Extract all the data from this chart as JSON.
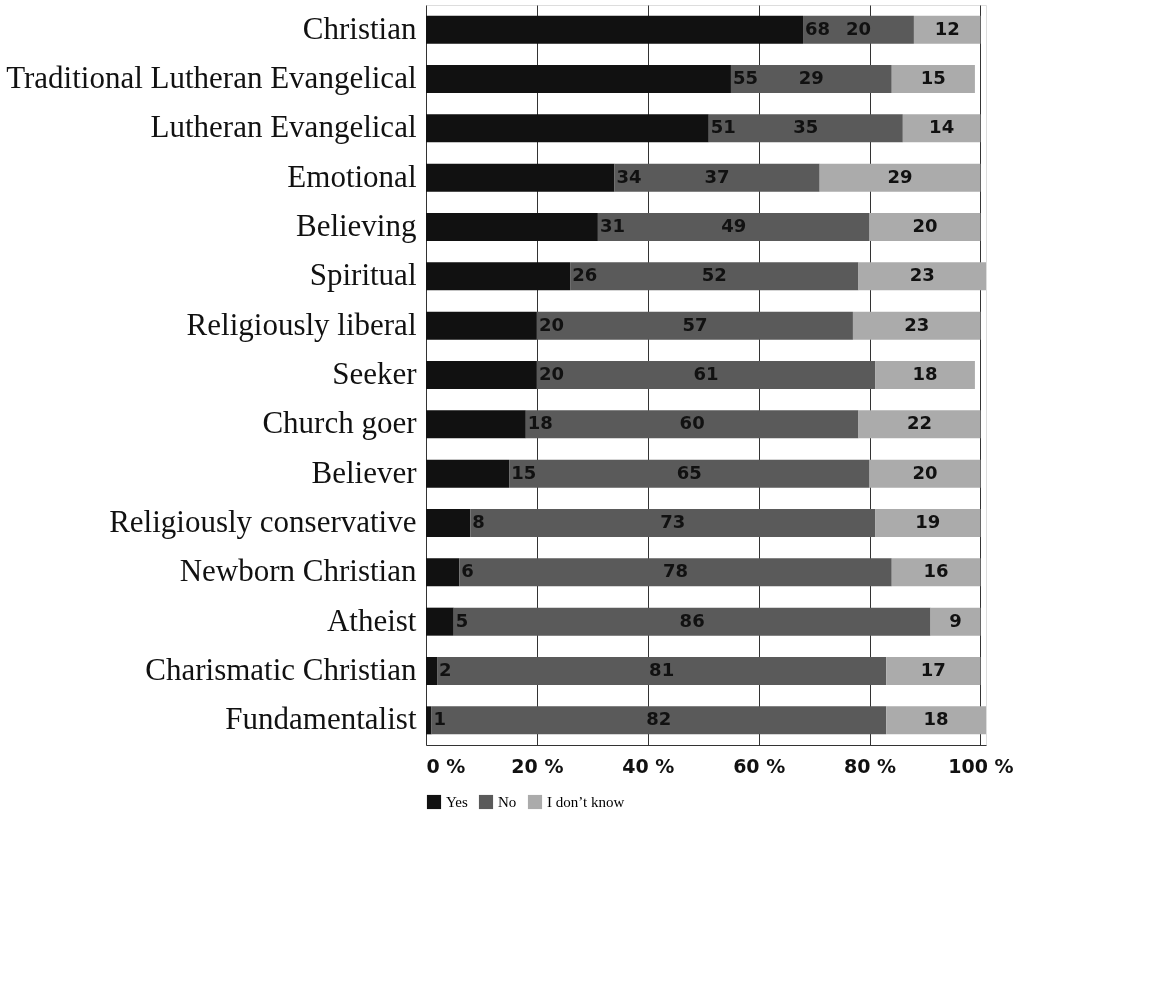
{
  "chart_data": {
    "type": "bar",
    "orientation": "horizontal",
    "stacked": true,
    "data_labels": true,
    "grid": "x",
    "legend": "bottom",
    "categories": [
      "Christian",
      "Traditional Lutheran Evangelical",
      "Lutheran Evangelical",
      "Emotional",
      "Believing",
      "Spiritual",
      "Religiously liberal",
      "Seeker",
      "Church goer",
      "Believer",
      "Religiously conservative",
      "Newborn Christian",
      "Atheist",
      "Charismatic Christian",
      "Fundamentalist"
    ],
    "series": [
      {
        "name": "Yes",
        "color": "#111111",
        "values": [
          68,
          55,
          51,
          34,
          31,
          26,
          20,
          20,
          18,
          15,
          8,
          6,
          5,
          2,
          1
        ]
      },
      {
        "name": "No",
        "color": "#5a5a5a",
        "values": [
          20,
          29,
          35,
          37,
          49,
          52,
          57,
          61,
          60,
          65,
          73,
          78,
          86,
          81,
          82
        ]
      },
      {
        "name": "I don’t know",
        "color": "#ababab",
        "values": [
          12,
          15,
          14,
          29,
          20,
          23,
          23,
          18,
          22,
          20,
          19,
          16,
          9,
          17,
          18
        ]
      }
    ],
    "xlim": [
      0,
      101
    ],
    "xticks": [
      {
        "value": 0,
        "label": "0 %"
      },
      {
        "value": 20,
        "label": "20 %"
      },
      {
        "value": 40,
        "label": "40 %"
      },
      {
        "value": 60,
        "label": "60 %"
      },
      {
        "value": 80,
        "label": "80 %"
      },
      {
        "value": 100,
        "label": "100 %"
      }
    ]
  }
}
